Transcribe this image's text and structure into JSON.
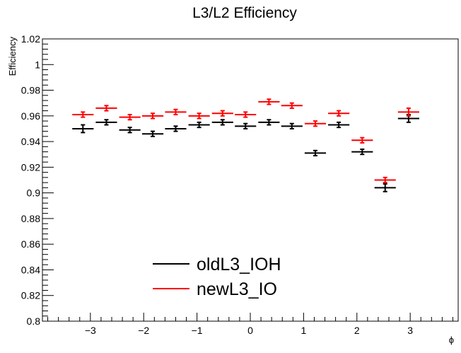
{
  "chart_data": {
    "type": "scatter",
    "title": "L3/L2 Efficiency",
    "xlabel": "ϕ",
    "ylabel": "Efficiency",
    "xlim": [
      -3.9,
      3.9
    ],
    "ylim": [
      0.8,
      1.02
    ],
    "x_ticks": [
      -3,
      -2,
      -1,
      0,
      1,
      2,
      3
    ],
    "x_tick_labels": [
      "−3",
      "−2",
      "−1",
      "0",
      "1",
      "2",
      "3"
    ],
    "y_ticks": [
      0.8,
      0.82,
      0.84,
      0.86,
      0.88,
      0.9,
      0.92,
      0.94,
      0.96,
      0.98,
      1.0,
      1.02
    ],
    "y_tick_labels": [
      "0.8",
      "0.82",
      "0.84",
      "0.86",
      "0.88",
      "0.9",
      "0.92",
      "0.94",
      "0.96",
      "0.98",
      "1",
      "1.02"
    ],
    "x_bin_half_width": 0.2,
    "legend_position": "bottom-left",
    "grid": false,
    "series": [
      {
        "name": "oldL3_IOH",
        "color": "#000000",
        "x": [
          -3.14,
          -2.7,
          -2.26,
          -1.83,
          -1.4,
          -0.96,
          -0.52,
          -0.09,
          0.35,
          0.78,
          1.22,
          1.66,
          2.1,
          2.53,
          2.97
        ],
        "y": [
          0.95,
          0.955,
          0.949,
          0.946,
          0.95,
          0.953,
          0.955,
          0.952,
          0.955,
          0.952,
          0.931,
          0.953,
          0.932,
          0.904,
          0.958
        ],
        "y_err": [
          0.003,
          0.002,
          0.002,
          0.002,
          0.002,
          0.002,
          0.002,
          0.002,
          0.002,
          0.002,
          0.002,
          0.002,
          0.002,
          0.003,
          0.003
        ]
      },
      {
        "name": "newL3_IO",
        "color": "#ff0000",
        "x": [
          -3.14,
          -2.7,
          -2.26,
          -1.83,
          -1.4,
          -0.96,
          -0.52,
          -0.09,
          0.35,
          0.78,
          1.22,
          1.66,
          2.1,
          2.53,
          2.97
        ],
        "y": [
          0.961,
          0.966,
          0.959,
          0.96,
          0.963,
          0.96,
          0.962,
          0.961,
          0.971,
          0.968,
          0.954,
          0.962,
          0.941,
          0.91,
          0.963
        ],
        "y_err": [
          0.002,
          0.002,
          0.002,
          0.002,
          0.002,
          0.002,
          0.002,
          0.002,
          0.002,
          0.002,
          0.002,
          0.002,
          0.002,
          0.002,
          0.003
        ]
      }
    ]
  }
}
